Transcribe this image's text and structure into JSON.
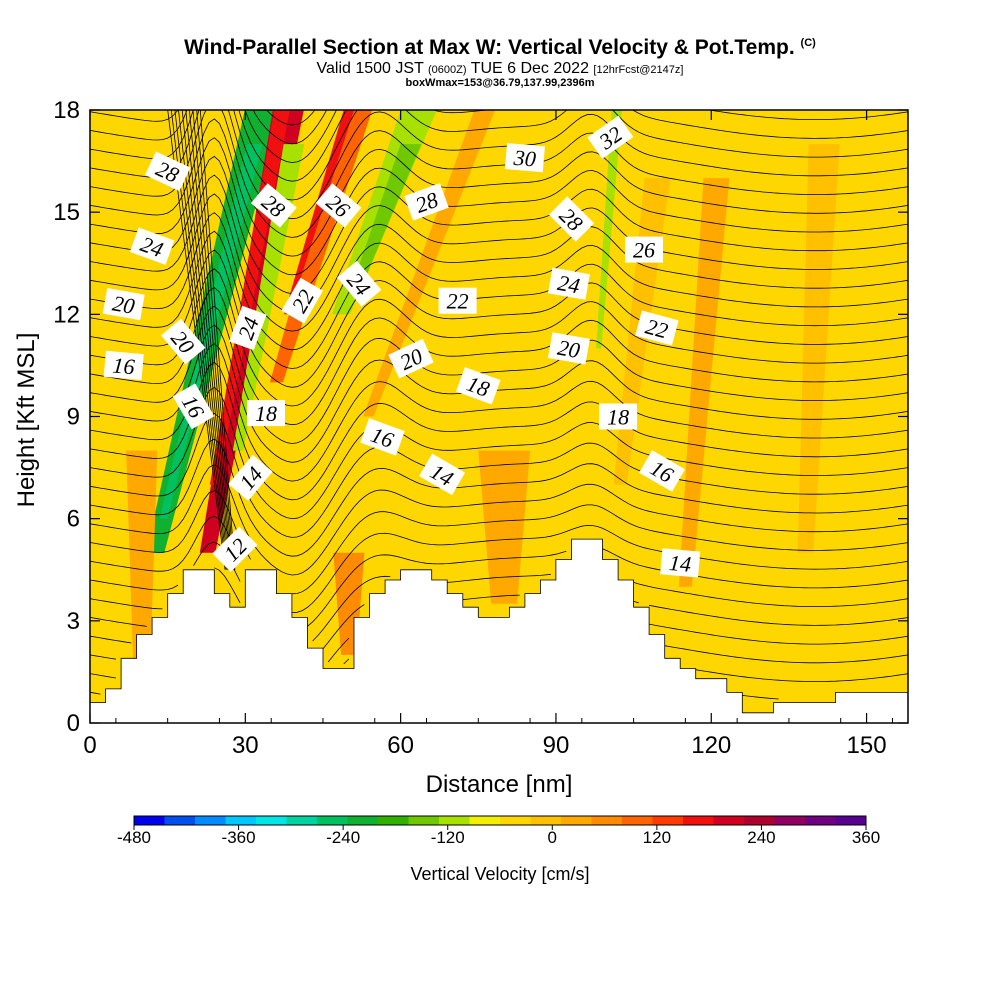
{
  "chart_data": {
    "type": "contour",
    "title": "Wind-Parallel Section at Max W: Vertical Velocity & Pot.Temp.",
    "title_mark": "(C)",
    "subtitle_main": "Valid 1500 JST",
    "subtitle_z": "(0600Z)",
    "subtitle_date": "TUE 6 Dec 2022",
    "subtitle_fcst": "[12hrFcst@2147z]",
    "box_note": "boxWmax=153@36.79,137.99,2396m",
    "xlabel": "Distance [nm]",
    "ylabel": "Height [Kft MSL]",
    "xlim": [
      0,
      158
    ],
    "ylim": [
      0,
      18
    ],
    "x_ticks": [
      0,
      30,
      60,
      90,
      120,
      150
    ],
    "y_ticks": [
      0,
      3,
      6,
      9,
      12,
      15,
      18
    ],
    "colorbar": {
      "label": "Vertical Velocity [cm/s]",
      "tick_labels": [
        "-480",
        "-360",
        "-240",
        "-120",
        "0",
        "120",
        "240",
        "360"
      ],
      "colors": [
        "#0000ee",
        "#0050f0",
        "#008cff",
        "#00c8ff",
        "#00e6e6",
        "#00d2a0",
        "#00c060",
        "#10b030",
        "#30b000",
        "#70c800",
        "#a8e000",
        "#f0f000",
        "#ffd700",
        "#ffc000",
        "#ffa800",
        "#ff8c00",
        "#ff6400",
        "#ff3c00",
        "#f01010",
        "#d00020",
        "#b00030",
        "#900060",
        "#700080",
        "#580090"
      ]
    },
    "terrain_kft": [
      [
        0,
        0.6
      ],
      [
        3,
        0.6
      ],
      [
        3,
        1.0
      ],
      [
        6,
        1.0
      ],
      [
        6,
        1.9
      ],
      [
        9,
        1.9
      ],
      [
        9,
        2.6
      ],
      [
        12,
        2.6
      ],
      [
        12,
        3.1
      ],
      [
        15,
        3.1
      ],
      [
        15,
        3.8
      ],
      [
        18,
        3.8
      ],
      [
        18,
        4.5
      ],
      [
        24,
        4.5
      ],
      [
        24,
        3.8
      ],
      [
        27,
        3.8
      ],
      [
        27,
        3.4
      ],
      [
        30,
        3.4
      ],
      [
        30,
        4.5
      ],
      [
        36,
        4.5
      ],
      [
        36,
        3.8
      ],
      [
        39,
        3.8
      ],
      [
        39,
        3.1
      ],
      [
        42,
        3.1
      ],
      [
        42,
        2.2
      ],
      [
        45,
        2.2
      ],
      [
        45,
        1.6
      ],
      [
        51,
        1.6
      ],
      [
        51,
        3.1
      ],
      [
        54,
        3.1
      ],
      [
        54,
        3.8
      ],
      [
        57,
        3.8
      ],
      [
        57,
        4.2
      ],
      [
        60,
        4.2
      ],
      [
        60,
        4.5
      ],
      [
        66,
        4.5
      ],
      [
        66,
        4.2
      ],
      [
        69,
        4.2
      ],
      [
        69,
        3.8
      ],
      [
        72,
        3.8
      ],
      [
        72,
        3.4
      ],
      [
        75,
        3.4
      ],
      [
        75,
        3.1
      ],
      [
        81,
        3.1
      ],
      [
        81,
        3.4
      ],
      [
        84,
        3.4
      ],
      [
        84,
        3.8
      ],
      [
        87,
        3.8
      ],
      [
        87,
        4.2
      ],
      [
        90,
        4.2
      ],
      [
        90,
        4.8
      ],
      [
        93,
        4.8
      ],
      [
        93,
        5.4
      ],
      [
        99,
        5.4
      ],
      [
        99,
        4.8
      ],
      [
        102,
        4.8
      ],
      [
        102,
        4.2
      ],
      [
        105,
        4.2
      ],
      [
        105,
        3.4
      ],
      [
        108,
        3.4
      ],
      [
        108,
        2.6
      ],
      [
        111,
        2.6
      ],
      [
        111,
        1.9
      ],
      [
        114,
        1.9
      ],
      [
        114,
        1.6
      ],
      [
        117,
        1.6
      ],
      [
        117,
        1.3
      ],
      [
        123,
        1.3
      ],
      [
        123,
        0.9
      ],
      [
        126,
        0.9
      ],
      [
        126,
        0.3
      ],
      [
        132,
        0.3
      ],
      [
        132,
        0.6
      ],
      [
        144,
        0.6
      ],
      [
        144,
        0.9
      ],
      [
        158,
        0.9
      ],
      [
        158,
        0
      ]
    ],
    "w_features": [
      {
        "x": 23,
        "w": 7,
        "ytop": 18,
        "ybot": 5,
        "slope": 1.6,
        "color": "#10b030"
      },
      {
        "x": 23,
        "w": 3,
        "ytop": 17,
        "ybot": 6,
        "slope": 1.6,
        "color": "#00c060"
      },
      {
        "x": 30.5,
        "w": 6,
        "ytop": 18,
        "ybot": 5,
        "slope": 1.2,
        "color": "#d00020"
      },
      {
        "x": 30.5,
        "w": 3,
        "ytop": 18,
        "ybot": 7,
        "slope": 1.2,
        "color": "#f01010"
      },
      {
        "x": 34,
        "w": 4,
        "ytop": 17,
        "ybot": 8,
        "slope": 1.2,
        "color": "#a8e000"
      },
      {
        "x": 44,
        "w": 5,
        "ytop": 18,
        "ybot": 10,
        "slope": 2.0,
        "color": "#ff6400"
      },
      {
        "x": 44,
        "w": 2,
        "ytop": 18,
        "ybot": 12,
        "slope": 2.0,
        "color": "#f01010"
      },
      {
        "x": 56,
        "w": 7,
        "ytop": 18,
        "ybot": 12,
        "slope": 2.5,
        "color": "#a8e000"
      },
      {
        "x": 57,
        "w": 4,
        "ytop": 17,
        "ybot": 13,
        "slope": 2.5,
        "color": "#70c800"
      },
      {
        "x": 65,
        "w": 4,
        "ytop": 18,
        "ybot": 9,
        "slope": 2.5,
        "color": "#ffa800"
      },
      {
        "x": 100,
        "w": 2,
        "ytop": 18,
        "ybot": 11,
        "slope": 0.5,
        "color": "#a8e000"
      },
      {
        "x": 106,
        "w": 5,
        "ytop": 16,
        "ybot": 7,
        "slope": 0.8,
        "color": "#ffc000"
      },
      {
        "x": 118,
        "w": 5,
        "ytop": 16,
        "ybot": 4,
        "slope": 0.5,
        "color": "#ffa800"
      },
      {
        "x": 140,
        "w": 6,
        "ytop": 17,
        "ybot": 5,
        "slope": 0.3,
        "color": "#ffc000"
      },
      {
        "x": 10,
        "w": 6,
        "ytop": 8,
        "ybot": 1,
        "slope": 0,
        "color": "#ffa800"
      },
      {
        "x": 80,
        "w": 10,
        "ytop": 8,
        "ybot": 3.5,
        "slope": 0,
        "color": "#ffa800"
      },
      {
        "x": 50,
        "w": 6,
        "ytop": 5,
        "ybot": 2,
        "slope": 0,
        "color": "#ff8c00"
      }
    ],
    "theta_labels": [
      {
        "text": "28",
        "x": 15,
        "y": 16.2,
        "rot": 25
      },
      {
        "text": "24",
        "x": 12,
        "y": 14.0,
        "rot": 20
      },
      {
        "text": "20",
        "x": 6.5,
        "y": 12.3,
        "rot": 10
      },
      {
        "text": "16",
        "x": 6.5,
        "y": 10.5,
        "rot": 5
      },
      {
        "text": "20",
        "x": 18,
        "y": 11.2,
        "rot": 50
      },
      {
        "text": "16",
        "x": 20,
        "y": 9.3,
        "rot": 60
      },
      {
        "text": "28",
        "x": 35.5,
        "y": 15.2,
        "rot": 40
      },
      {
        "text": "24",
        "x": 30.5,
        "y": 11.6,
        "rot": -70
      },
      {
        "text": "18",
        "x": 34,
        "y": 9.1,
        "rot": 0
      },
      {
        "text": "14",
        "x": 31,
        "y": 7.2,
        "rot": -50
      },
      {
        "text": "12",
        "x": 28,
        "y": 5.1,
        "rot": -45
      },
      {
        "text": "26",
        "x": 48,
        "y": 15.2,
        "rot": 40
      },
      {
        "text": "22",
        "x": 41,
        "y": 12.4,
        "rot": -60
      },
      {
        "text": "24",
        "x": 52,
        "y": 12.9,
        "rot": 50
      },
      {
        "text": "28",
        "x": 65,
        "y": 15.3,
        "rot": -20
      },
      {
        "text": "20",
        "x": 62,
        "y": 10.7,
        "rot": -25
      },
      {
        "text": "22",
        "x": 71,
        "y": 12.4,
        "rot": 0
      },
      {
        "text": "18",
        "x": 75,
        "y": 9.9,
        "rot": 20
      },
      {
        "text": "16",
        "x": 56.5,
        "y": 8.4,
        "rot": 20
      },
      {
        "text": "14",
        "x": 68,
        "y": 7.3,
        "rot": 30
      },
      {
        "text": "30",
        "x": 84,
        "y": 16.6,
        "rot": 5
      },
      {
        "text": "32",
        "x": 100.5,
        "y": 17.2,
        "rot": -35
      },
      {
        "text": "28",
        "x": 93,
        "y": 14.8,
        "rot": 45
      },
      {
        "text": "26",
        "x": 107,
        "y": 13.9,
        "rot": 0
      },
      {
        "text": "24",
        "x": 92.5,
        "y": 12.9,
        "rot": 10
      },
      {
        "text": "20",
        "x": 92.5,
        "y": 11.0,
        "rot": 10
      },
      {
        "text": "22",
        "x": 109.5,
        "y": 11.6,
        "rot": 15
      },
      {
        "text": "18",
        "x": 102,
        "y": 9.0,
        "rot": 0
      },
      {
        "text": "16",
        "x": 110.5,
        "y": 7.4,
        "rot": 30
      },
      {
        "text": "14",
        "x": 114,
        "y": 4.7,
        "rot": 5
      }
    ]
  }
}
